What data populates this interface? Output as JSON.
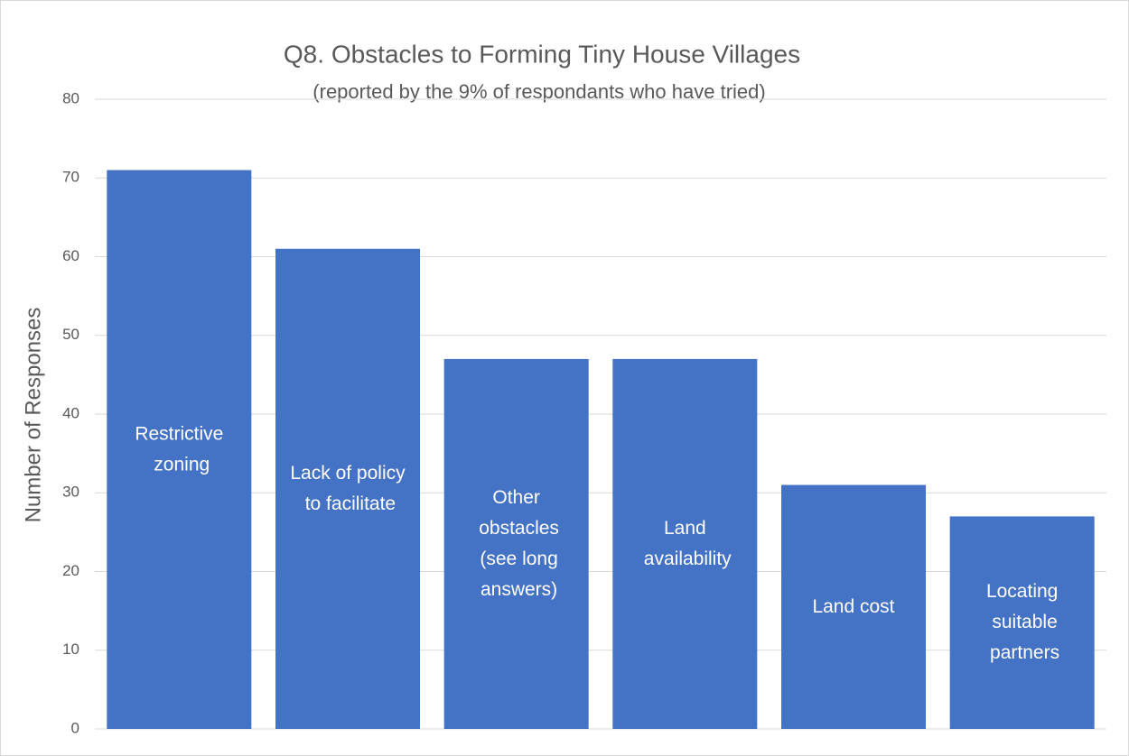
{
  "chart_data": {
    "type": "bar",
    "title": "Q8. Obstacles to Forming Tiny House Villages",
    "subtitle": "(reported by the 9% of respondants who have tried)",
    "y_label": "Number of Responses",
    "categories": [
      "Restrictive zoning",
      "Lack of policy to facilitate",
      "Other obstacles (see long answers)",
      "Land availability",
      "Land cost",
      "Locating suitable partners"
    ],
    "values": [
      71,
      61,
      47,
      47,
      31,
      27
    ],
    "color": "#4472c4",
    "ylim": [
      0,
      80
    ],
    "yticks": [
      0,
      10,
      20,
      30,
      40,
      50,
      60,
      70,
      80
    ],
    "grid": true
  }
}
